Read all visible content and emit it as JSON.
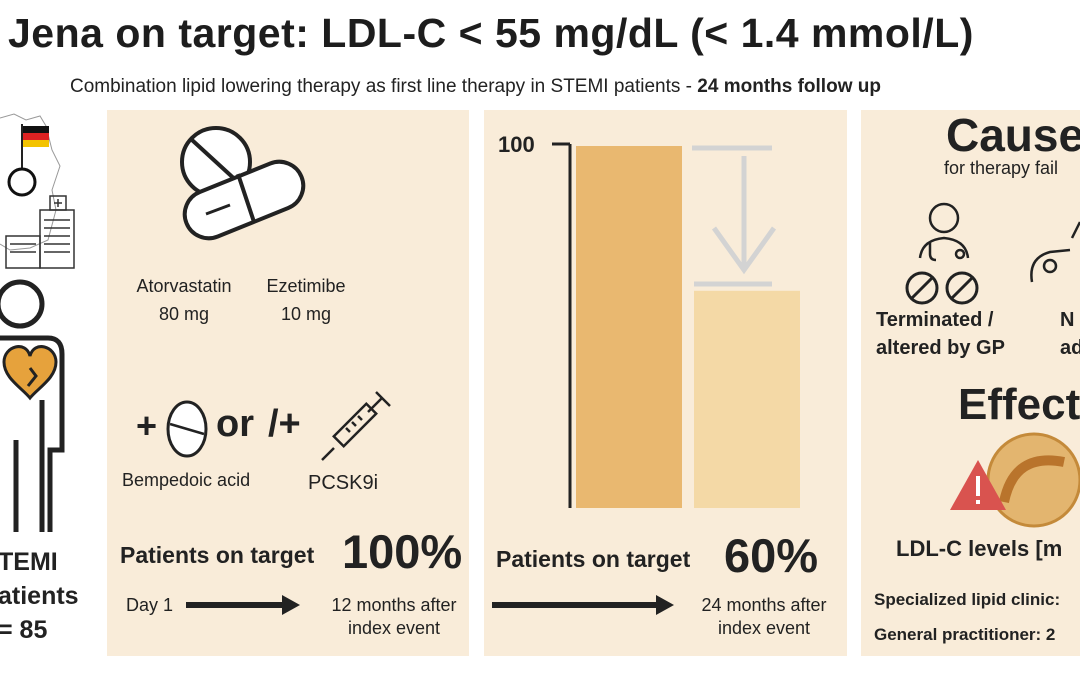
{
  "header": {
    "title": "Jena on target: LDL-C < 55 mg/dL (< 1.4 mmol/L)",
    "subtitle_main": "Combination lipid lowering therapy as first line therapy in STEMI patients  - ",
    "subtitle_bold": "24 months follow up"
  },
  "left": {
    "line1": "TEMI",
    "line2": "atients",
    "line3": "= 85"
  },
  "panel1": {
    "drug1_name": "Atorvastatin",
    "drug1_dose": "80 mg",
    "drug2_name": "Ezetimibe",
    "drug2_dose": "10 mg",
    "plus1": "+",
    "or": "or",
    "slash_plus": "/+",
    "drug3": "Bempedoic acid",
    "drug4": "PCSK9i",
    "target_label": "Patients on target",
    "target_pct": "100%",
    "from": "Day 1",
    "to_line1": "12 months after",
    "to_line2": "index event"
  },
  "panel2": {
    "axis_label": "100",
    "target_label": "Patients on target",
    "target_pct": "60%",
    "to_line1": "24 months after",
    "to_line2": "index event"
  },
  "chart_data": {
    "type": "bar",
    "categories": [
      "12 months",
      "24 months"
    ],
    "values": [
      100,
      60
    ],
    "ylim": [
      0,
      100
    ],
    "colors": [
      "#e9b870",
      "#f4d9a6"
    ]
  },
  "panel3": {
    "causes_title": "Cause",
    "causes_sub": "for therapy fail",
    "cause1_line1": "Terminated /",
    "cause1_line2": "altered by GP",
    "cause2_line1": "N",
    "cause2_line2": "ad",
    "effect_title": "Effect",
    "ldl_levels": "LDL-C levels [m",
    "clinic": "Specialized lipid clinic:",
    "gp": "General practitioner: 2"
  },
  "colors": {
    "panel_bg": "#f9ecd9",
    "accent": "#e6a23c",
    "bar1": "#e9b870",
    "bar2": "#f4d9a6",
    "warning": "#d9534f"
  }
}
